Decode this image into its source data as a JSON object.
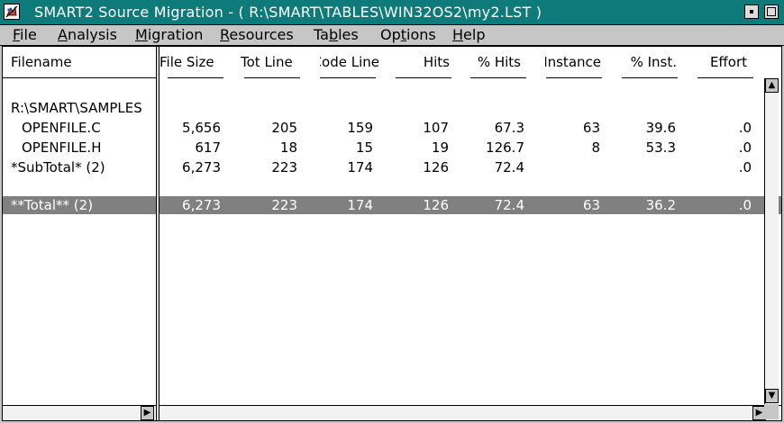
{
  "window": {
    "title": "SMART2 Source Migration - ( R:\\SMART\\TABLES\\WIN32OS2\\my2.LST )"
  },
  "menu": [
    {
      "label": "File",
      "mnemonic": "F",
      "rest": "ile"
    },
    {
      "label": "Analysis",
      "mnemonic": "A",
      "rest": "nalysis"
    },
    {
      "label": "Migration",
      "mnemonic": "M",
      "rest": "igration"
    },
    {
      "label": "Resources",
      "mnemonic": "R",
      "rest": "esources"
    },
    {
      "label": "Tables",
      "pre": "Ta",
      "mnemonic": "b",
      "rest": "les"
    },
    {
      "label": "Options",
      "pre": "Op",
      "mnemonic": "t",
      "rest": "ions"
    },
    {
      "label": "Help",
      "mnemonic": "H",
      "rest": "elp"
    }
  ],
  "table": {
    "filename_header": "Filename",
    "columns": [
      "File Size",
      "Tot Line",
      "Code Line",
      "Hits",
      "% Hits",
      "Instance",
      "% Inst.",
      "Effort"
    ],
    "group": "R:\\SMART\\SAMPLES",
    "rows": [
      {
        "name": "OPENFILE.C",
        "values": [
          "5,656",
          "205",
          "159",
          "107",
          "67.3",
          "63",
          "39.6",
          ".0"
        ]
      },
      {
        "name": "OPENFILE.H",
        "values": [
          "617",
          "18",
          "15",
          "19",
          "126.7",
          "8",
          "53.3",
          ".0"
        ]
      }
    ],
    "subtotal": {
      "name": "*SubTotal* (2)",
      "values": [
        "6,273",
        "223",
        "174",
        "126",
        "72.4",
        "",
        "",
        ".0"
      ]
    },
    "total": {
      "name": "**Total** (2)",
      "values": [
        "6,273",
        "223",
        "174",
        "126",
        "72.4",
        "63",
        "36.2",
        ".0"
      ]
    }
  },
  "icons": {
    "system_menu": "app-system-menu-icon",
    "minimize": "minimize-icon",
    "maximize": "maximize-icon",
    "scroll_up": "scroll-up-arrow-icon",
    "scroll_down": "scroll-down-arrow-icon",
    "scroll_right": "scroll-right-arrow-icon"
  }
}
